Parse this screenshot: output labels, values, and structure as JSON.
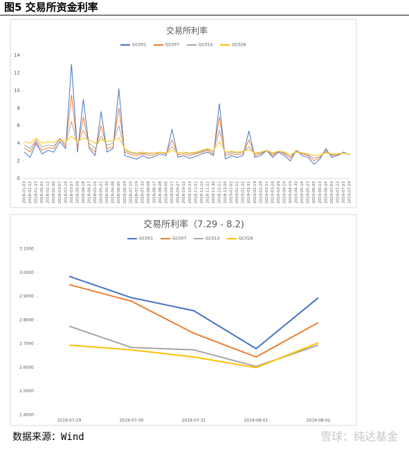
{
  "header": {
    "title": "图5 交易所资金利率"
  },
  "footer": {
    "source": "数据来源：Wind",
    "watermark": "雪球：纯达基金"
  },
  "chart_data": [
    {
      "type": "line",
      "title": "交易所利率",
      "categories": [
        "2018-01-03",
        "2018-01-12",
        "2018-01-23",
        "2018-02-01",
        "2018-02-12",
        "2018-02-26",
        "2018-03-07",
        "2018-03-16",
        "2018-03-27",
        "2018-04-09",
        "2018-04-18",
        "2018-04-27",
        "2018-05-10",
        "2018-05-21",
        "2018-05-30",
        "2018-06-08",
        "2018-06-20",
        "2018-06-29",
        "2018-07-10",
        "2018-07-19",
        "2018-07-30",
        "2018-08-08",
        "2018-08-17",
        "2018-08-28",
        "2018-09-06",
        "2018-09-17",
        "2018-09-27",
        "2018-10-12",
        "2018-10-23",
        "2018-11-01",
        "2018-11-12",
        "2018-11-21",
        "2018-11-30",
        "2018-12-11",
        "2018-12-20",
        "2019-01-02",
        "2019-01-11",
        "2019-01-22",
        "2019-01-31",
        "2019-02-19",
        "2019-02-28",
        "2019-03-11",
        "2019-03-20",
        "2019-03-29",
        "2019-04-10",
        "2019-04-19",
        "2019-04-30",
        "2019-05-14",
        "2019-05-23",
        "2019-06-03",
        "2019-06-13",
        "2019-06-24",
        "2019-07-03",
        "2019-07-12",
        "2019-07-23",
        "2019-07-29"
      ],
      "ylim": [
        0,
        14
      ],
      "yticks": [
        0,
        2,
        4,
        6,
        8,
        10,
        12,
        14
      ],
      "series": [
        {
          "name": "GC001",
          "color": "#4472c4",
          "values": [
            3.0,
            2.4,
            4.0,
            2.8,
            3.2,
            3.0,
            4.2,
            3.4,
            13.0,
            3.0,
            9.0,
            3.4,
            2.6,
            7.6,
            3.0,
            3.4,
            10.2,
            2.6,
            2.4,
            2.2,
            2.6,
            2.3,
            2.5,
            2.8,
            2.6,
            5.6,
            2.4,
            2.6,
            2.3,
            2.5,
            2.8,
            3.0,
            2.6,
            8.5,
            2.2,
            2.6,
            2.4,
            2.6,
            5.4,
            2.4,
            2.6,
            3.2,
            2.4,
            3.0,
            2.6,
            2.0,
            3.2,
            2.6,
            2.4,
            1.6,
            2.2,
            3.4,
            2.4,
            2.6,
            3.0,
            2.7
          ]
        },
        {
          "name": "GC007",
          "color": "#ed7d31",
          "values": [
            3.5,
            3.0,
            4.2,
            3.2,
            3.5,
            3.4,
            4.6,
            3.6,
            9.5,
            3.4,
            7.0,
            3.6,
            3.0,
            6.0,
            3.4,
            3.6,
            8.0,
            3.0,
            2.7,
            2.6,
            2.8,
            2.6,
            2.7,
            3.0,
            2.8,
            4.4,
            2.7,
            2.8,
            2.6,
            2.8,
            3.0,
            3.2,
            2.8,
            7.0,
            2.6,
            2.8,
            2.7,
            2.8,
            4.4,
            2.6,
            2.8,
            3.2,
            2.6,
            3.1,
            2.8,
            2.3,
            3.2,
            2.8,
            2.6,
            2.0,
            2.4,
            3.2,
            2.6,
            2.7,
            2.9,
            2.75
          ]
        },
        {
          "name": "GC014",
          "color": "#a5a5a5",
          "values": [
            3.8,
            3.4,
            4.4,
            3.6,
            3.8,
            3.7,
            4.4,
            3.9,
            6.5,
            3.8,
            5.5,
            4.0,
            3.4,
            4.8,
            3.8,
            4.0,
            6.0,
            3.2,
            2.9,
            2.8,
            2.9,
            2.8,
            2.9,
            3.0,
            2.9,
            3.6,
            2.9,
            3.0,
            2.8,
            2.9,
            3.1,
            3.3,
            3.0,
            5.5,
            2.8,
            3.0,
            2.9,
            3.0,
            3.6,
            2.8,
            2.9,
            3.2,
            2.8,
            3.1,
            2.9,
            2.5,
            3.1,
            2.9,
            2.7,
            2.3,
            2.5,
            3.0,
            2.7,
            2.8,
            2.9,
            2.75
          ]
        },
        {
          "name": "GC028",
          "color": "#ffc000",
          "values": [
            4.2,
            4.0,
            4.6,
            4.0,
            4.2,
            4.1,
            4.4,
            4.2,
            4.8,
            4.2,
            4.6,
            4.4,
            4.0,
            4.4,
            4.2,
            4.3,
            4.6,
            3.4,
            3.0,
            2.9,
            3.0,
            2.9,
            2.9,
            3.0,
            2.9,
            3.2,
            2.9,
            3.0,
            2.9,
            3.0,
            3.2,
            3.4,
            3.2,
            4.2,
            3.0,
            3.1,
            3.0,
            3.1,
            3.3,
            2.9,
            3.0,
            3.2,
            2.9,
            3.1,
            3.0,
            2.7,
            3.0,
            2.9,
            2.8,
            2.6,
            2.7,
            2.9,
            2.8,
            2.8,
            2.9,
            2.75
          ]
        }
      ]
    },
    {
      "type": "line",
      "title": "交易所利率（7.29 - 8.2)",
      "categories": [
        "2019-07-29",
        "2019-07-30",
        "2019-07-31",
        "2019-08-01",
        "2019-08-02"
      ],
      "ylim": [
        2.4,
        3.1
      ],
      "yticks": [
        {
          "value": 2.4,
          "label": "2.4000"
        },
        {
          "value": 2.5,
          "label": "2.5000"
        },
        {
          "value": 2.6,
          "label": "2.6000"
        },
        {
          "value": 2.7,
          "label": "2.7000"
        },
        {
          "value": 2.8,
          "label": "2.8000"
        },
        {
          "value": 2.9,
          "label": "2.9000"
        },
        {
          "value": 3.0,
          "label": "3.0000"
        },
        {
          "value": 3.1,
          "label": "3.1000"
        }
      ],
      "series": [
        {
          "name": "GC001",
          "color": "#4472c4",
          "values": [
            2.985,
            2.895,
            2.84,
            2.68,
            2.895
          ]
        },
        {
          "name": "GC007",
          "color": "#ed7d31",
          "values": [
            2.95,
            2.88,
            2.745,
            2.645,
            2.79
          ]
        },
        {
          "name": "GC014",
          "color": "#a5a5a5",
          "values": [
            2.775,
            2.685,
            2.675,
            2.605,
            2.695
          ]
        },
        {
          "name": "GC028",
          "color": "#ffc000",
          "values": [
            2.695,
            2.675,
            2.645,
            2.6,
            2.705
          ]
        }
      ]
    }
  ]
}
